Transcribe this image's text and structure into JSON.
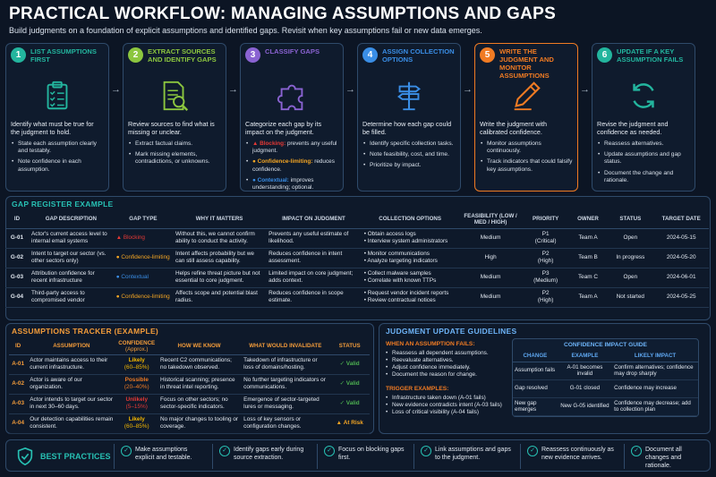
{
  "title": "PRACTICAL WORKFLOW: MANAGING ASSUMPTIONS AND GAPS",
  "subtitle": "Build judgments on a foundation of explicit assumptions and identified gaps. Revisit when key assumptions fail or new data emerges.",
  "steps": [
    {
      "num": "1",
      "title": "LIST ASSUMPTIONS FIRST",
      "color": "#23b59e",
      "icon": "clipboard-checklist-icon",
      "desc": "Identify what must be true for the judgment to hold.",
      "bullets": [
        "State each assumption clearly and testably.",
        "Note confidence in each assumption."
      ]
    },
    {
      "num": "2",
      "title": "EXTRACT SOURCES AND IDENTIFY GAPS",
      "color": "#8cc63f",
      "icon": "document-magnifier-icon",
      "desc": "Review sources to find what is missing or unclear.",
      "bullets": [
        "Extract factual claims.",
        "Mark missing elements, contradictions, or unknowns."
      ]
    },
    {
      "num": "3",
      "title": "CLASSIFY GAPS",
      "color": "#8a63d2",
      "icon": "puzzle-piece-icon",
      "desc": "Categorize each gap by its impact on the judgment.",
      "cls": [
        {
          "label": "Blocking:",
          "text": "prevents any useful judgment.",
          "color": "#e53935",
          "sym": "▲"
        },
        {
          "label": "Confidence-limiting:",
          "text": "reduces confidence.",
          "color": "#f5a623",
          "sym": "●"
        },
        {
          "label": "Contextual:",
          "text": "improves understanding; optional.",
          "color": "#3a8ee6",
          "sym": "●"
        }
      ]
    },
    {
      "num": "4",
      "title": "ASSIGN COLLECTION OPTIONS",
      "color": "#3a8ee6",
      "icon": "signpost-icon",
      "desc": "Determine how each gap could be filled.",
      "bullets": [
        "Identify specific collection tasks.",
        "Note feasibility, cost, and time.",
        "Prioritize by impact."
      ]
    },
    {
      "num": "5",
      "title": "WRITE THE JUDGMENT AND MONITOR ASSUMPTIONS",
      "color": "#f07b23",
      "icon": "pen-icon",
      "desc": "Write the judgment with calibrated confidence.",
      "bullets": [
        "Monitor assumptions continuously.",
        "Track indicators that could falsify key assumptions."
      ]
    },
    {
      "num": "6",
      "title": "UPDATE IF A KEY ASSUMPTION FAILS",
      "color": "#23b59e",
      "icon": "refresh-icon",
      "desc": "Revise the judgment and confidence as needed.",
      "bullets": [
        "Reassess alternatives.",
        "Update assumptions and gap status.",
        "Document the change and rationale."
      ]
    }
  ],
  "gap_register": {
    "title": "GAP REGISTER EXAMPLE",
    "headers": [
      "ID",
      "GAP DESCRIPTION",
      "GAP TYPE",
      "WHY IT MATTERS",
      "IMPACT ON JUDGMENT",
      "COLLECTION OPTIONS",
      "FEASIBILITY (LOW / MED / HIGH)",
      "PRIORITY",
      "OWNER",
      "STATUS",
      "TARGET DATE"
    ],
    "rows": [
      {
        "id": "G-01",
        "desc": "Actor's current access level to internal email systems",
        "type": "Blocking",
        "type_color": "#e53935",
        "type_sym": "▲",
        "why": "Without this, we cannot confirm ability to conduct the activity.",
        "impact": "Prevents any useful estimate of likelihood.",
        "opts": [
          "Obtain access logs",
          "Interview system administrators"
        ],
        "feas": "Medium",
        "prio": "P1",
        "prio_sub": "(Critical)",
        "owner": "Team A",
        "status": "Open",
        "date": "2024-05-15"
      },
      {
        "id": "G-02",
        "desc": "Intent to target our sector (vs. other sectors only)",
        "type": "Confidence-limiting",
        "type_color": "#f5a623",
        "type_sym": "●",
        "why": "Intent affects probability but we can still assess capability.",
        "impact": "Reduces confidence in intent assessment.",
        "opts": [
          "Monitor communications",
          "Analyze targeting indicators"
        ],
        "feas": "High",
        "prio": "P2",
        "prio_sub": "(High)",
        "owner": "Team B",
        "status": "In progress",
        "date": "2024-05-20"
      },
      {
        "id": "G-03",
        "desc": "Attribution confidence for recent infrastructure",
        "type": "Contextual",
        "type_color": "#3a8ee6",
        "type_sym": "●",
        "why": "Helps refine threat picture but not essential to core judgment.",
        "impact": "Limited impact on core judgment; adds context.",
        "opts": [
          "Collect malware samples",
          "Correlate with known TTPs"
        ],
        "feas": "Medium",
        "prio": "P3",
        "prio_sub": "(Medium)",
        "owner": "Team C",
        "status": "Open",
        "date": "2024-06-01"
      },
      {
        "id": "G-04",
        "desc": "Third-party access to compromised vendor",
        "type": "Confidence-limiting",
        "type_color": "#f5a623",
        "type_sym": "●",
        "why": "Affects scope and potential blast radius.",
        "impact": "Reduces confidence in scope estimate.",
        "opts": [
          "Request vendor incident reports",
          "Review contractual notices"
        ],
        "feas": "Medium",
        "prio": "P2",
        "prio_sub": "(High)",
        "owner": "Team A",
        "status": "Not started",
        "date": "2024-05-25"
      }
    ]
  },
  "assumptions": {
    "title": "ASSUMPTIONS TRACKER (EXAMPLE)",
    "headers": [
      "ID",
      "ASSUMPTION",
      "CONFIDENCE",
      "(Approx.)",
      "HOW WE KNOW",
      "WHAT WOULD INVALIDATE",
      "STATUS"
    ],
    "rows": [
      {
        "id": "A-01",
        "text": "Actor maintains access to their current infrastructure.",
        "conf": "Likely",
        "range": "(60–85%)",
        "conf_color": "#f5b800",
        "know": "Recent C2 communications; no takedown observed.",
        "inval": "Takedown of infrastructure or loss of domains/hosting.",
        "status": "Valid",
        "status_color": "#4caf50",
        "status_sym": "✓"
      },
      {
        "id": "A-02",
        "text": "Actor is aware of our organization.",
        "conf": "Possible",
        "range": "(20–40%)",
        "conf_color": "#f07b23",
        "know": "Historical scanning; presence in threat intel reporting.",
        "inval": "No further targeting indicators or communications.",
        "status": "Valid",
        "status_color": "#4caf50",
        "status_sym": "✓"
      },
      {
        "id": "A-03",
        "text": "Actor intends to target our sector in next 30–60 days.",
        "conf": "Unlikely",
        "range": "(5–15%)",
        "conf_color": "#e53935",
        "know": "Focus on other sectors; no sector-specific indicators.",
        "inval": "Emergence of sector-targeted lures or messaging.",
        "status": "Valid",
        "status_color": "#4caf50",
        "status_sym": "✓"
      },
      {
        "id": "A-04",
        "text": "Our detection capabilities remain consistent.",
        "conf": "Likely",
        "range": "(60–85%)",
        "conf_color": "#f5b800",
        "know": "No major changes to tooling or coverage.",
        "inval": "Loss of key sensors or configuration changes.",
        "status": "At Risk",
        "status_color": "#f5a623",
        "status_sym": "▲"
      }
    ]
  },
  "update": {
    "title": "JUDGMENT UPDATE GUIDELINES",
    "fail_title": "WHEN AN ASSUMPTION FAILS:",
    "fail_items": [
      "Reassess all dependent assumptions.",
      "Reevaluate alternatives.",
      "Adjust confidence immediately.",
      "Document the reason for change."
    ],
    "trig_title": "TRIGGER EXAMPLES:",
    "trig_items": [
      "Infrastructure taken down (A-01 fails)",
      "New evidence contradicts intent (A-03 fails)",
      "Loss of critical visibility (A-04 fails)"
    ],
    "guide_title": "CONFIDENCE IMPACT GUIDE",
    "guide_headers": [
      "CHANGE",
      "EXAMPLE",
      "LIKELY IMPACT"
    ],
    "guide_rows": [
      {
        "change": "Assumption fails",
        "example": "A-01 becomes invalid",
        "impact": "Confirm alternatives; confidence may drop sharply"
      },
      {
        "change": "Gap resolved",
        "example": "G-01 closed",
        "impact": "Confidence may increase"
      },
      {
        "change": "New gap emerges",
        "example": "New G-05 identified",
        "impact": "Confidence may decrease; add to collection plan"
      }
    ]
  },
  "best_practices": {
    "title": "BEST PRACTICES",
    "items": [
      "Make assumptions explicit and testable.",
      "Identify gaps early during source extraction.",
      "Focus on blocking gaps first.",
      "Link assumptions and gaps to the judgment.",
      "Reassess continuously as new evidence arrives.",
      "Document all changes and rationale."
    ]
  }
}
